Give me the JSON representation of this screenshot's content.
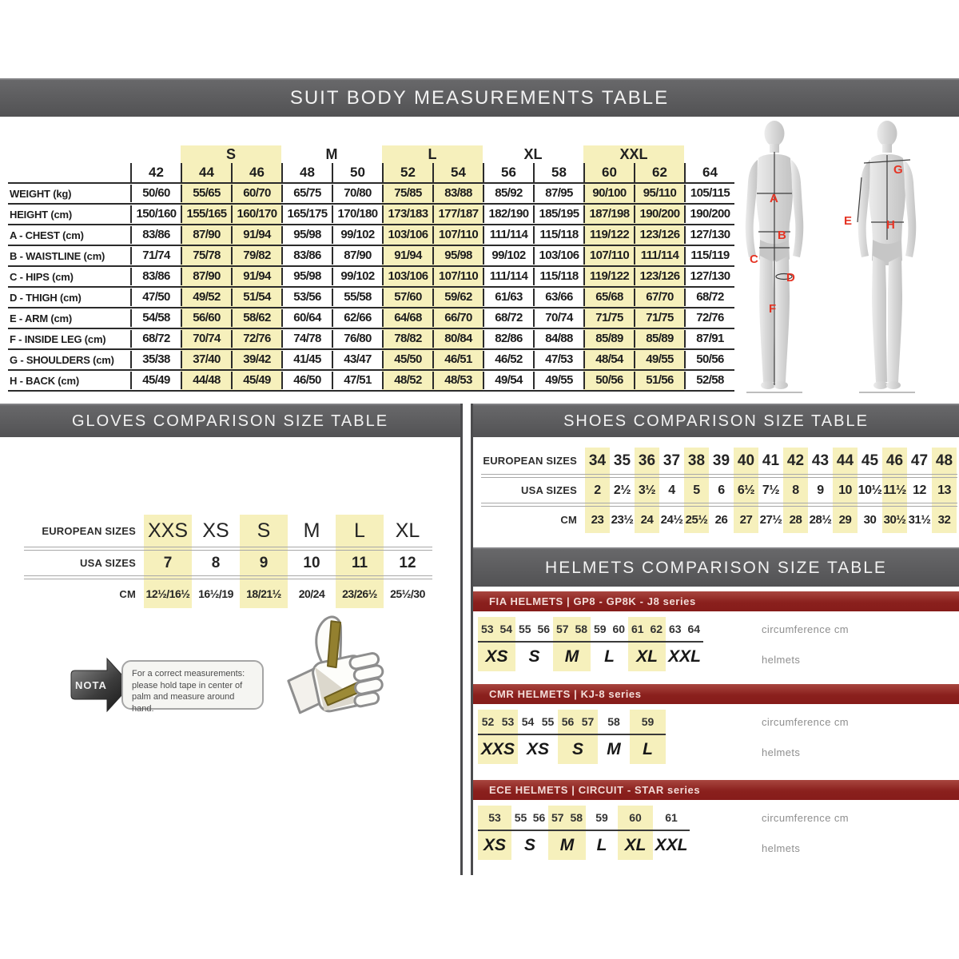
{
  "suit_table": {
    "title": "SUIT BODY MEASUREMENTS TABLE",
    "groups": [
      {
        "label": "",
        "cols": 1,
        "highlight": false
      },
      {
        "label": "S",
        "cols": 2,
        "highlight": true
      },
      {
        "label": "M",
        "cols": 2,
        "highlight": false
      },
      {
        "label": "L",
        "cols": 2,
        "highlight": true
      },
      {
        "label": "XL",
        "cols": 2,
        "highlight": false
      },
      {
        "label": "XXL",
        "cols": 2,
        "highlight": true
      },
      {
        "label": "",
        "cols": 1,
        "highlight": false
      }
    ],
    "sizes": [
      "42",
      "44",
      "46",
      "48",
      "50",
      "52",
      "54",
      "56",
      "58",
      "60",
      "62",
      "64"
    ],
    "highlight_cols": [
      1,
      2,
      5,
      6,
      9,
      10
    ],
    "rows": [
      {
        "label": "WEIGHT (kg)",
        "values": [
          "50/60",
          "55/65",
          "60/70",
          "65/75",
          "70/80",
          "75/85",
          "83/88",
          "85/92",
          "87/95",
          "90/100",
          "95/110",
          "105/115"
        ]
      },
      {
        "label": "HEIGHT (cm)",
        "values": [
          "150/160",
          "155/165",
          "160/170",
          "165/175",
          "170/180",
          "173/183",
          "177/187",
          "182/190",
          "185/195",
          "187/198",
          "190/200",
          "190/200"
        ]
      },
      {
        "label": "A - CHEST (cm)",
        "values": [
          "83/86",
          "87/90",
          "91/94",
          "95/98",
          "99/102",
          "103/106",
          "107/110",
          "111/114",
          "115/118",
          "119/122",
          "123/126",
          "127/130"
        ]
      },
      {
        "label": "B - WAISTLINE (cm)",
        "values": [
          "71/74",
          "75/78",
          "79/82",
          "83/86",
          "87/90",
          "91/94",
          "95/98",
          "99/102",
          "103/106",
          "107/110",
          "111/114",
          "115/119"
        ]
      },
      {
        "label": "C - HIPS (cm)",
        "values": [
          "83/86",
          "87/90",
          "91/94",
          "95/98",
          "99/102",
          "103/106",
          "107/110",
          "111/114",
          "115/118",
          "119/122",
          "123/126",
          "127/130"
        ]
      },
      {
        "label": "D - THIGH (cm)",
        "values": [
          "47/50",
          "49/52",
          "51/54",
          "53/56",
          "55/58",
          "57/60",
          "59/62",
          "61/63",
          "63/66",
          "65/68",
          "67/70",
          "68/72"
        ]
      },
      {
        "label": "E - ARM (cm)",
        "values": [
          "54/58",
          "56/60",
          "58/62",
          "60/64",
          "62/66",
          "64/68",
          "66/70",
          "68/72",
          "70/74",
          "71/75",
          "71/75",
          "72/76"
        ]
      },
      {
        "label": "F - INSIDE LEG (cm)",
        "values": [
          "68/72",
          "70/74",
          "72/76",
          "74/78",
          "76/80",
          "78/82",
          "80/84",
          "82/86",
          "84/88",
          "85/89",
          "85/89",
          "87/91"
        ]
      },
      {
        "label": "G - SHOULDERS (cm)",
        "values": [
          "35/38",
          "37/40",
          "39/42",
          "41/45",
          "43/47",
          "45/50",
          "46/51",
          "46/52",
          "47/53",
          "48/54",
          "49/55",
          "50/56"
        ]
      },
      {
        "label": "H - BACK (cm)",
        "values": [
          "45/49",
          "44/48",
          "45/49",
          "46/50",
          "47/51",
          "48/52",
          "48/53",
          "49/54",
          "49/55",
          "50/56",
          "51/56",
          "52/58"
        ]
      }
    ]
  },
  "figures": {
    "front": [
      "A",
      "B",
      "C",
      "D",
      "F"
    ],
    "back": [
      "G",
      "E",
      "H"
    ]
  },
  "gloves_table": {
    "header": "GLOVES COMPARISON SIZE TABLE",
    "row_labels": [
      "EUROPEAN SIZES",
      "USA SIZES",
      "CM"
    ],
    "columns": [
      {
        "eu": "XXS",
        "usa": "7",
        "cm": "12½/16½",
        "highlight": true
      },
      {
        "eu": "XS",
        "usa": "8",
        "cm": "16½/19",
        "highlight": false
      },
      {
        "eu": "S",
        "usa": "9",
        "cm": "18/21½",
        "highlight": true
      },
      {
        "eu": "M",
        "usa": "10",
        "cm": "20/24",
        "highlight": false
      },
      {
        "eu": "L",
        "usa": "11",
        "cm": "23/26½",
        "highlight": true
      },
      {
        "eu": "XL",
        "usa": "12",
        "cm": "25½/30",
        "highlight": false
      }
    ]
  },
  "shoes_table": {
    "header": "SHOES COMPARISON SIZE TABLE",
    "row_labels": [
      "EUROPEAN SIZES",
      "USA SIZES",
      "CM"
    ],
    "columns": [
      {
        "eu": "34",
        "usa": "2",
        "cm": "23",
        "highlight": true
      },
      {
        "eu": "35",
        "usa": "2½",
        "cm": "23½",
        "highlight": false
      },
      {
        "eu": "36",
        "usa": "3½",
        "cm": "24",
        "highlight": true
      },
      {
        "eu": "37",
        "usa": "4",
        "cm": "24½",
        "highlight": false
      },
      {
        "eu": "38",
        "usa": "5",
        "cm": "25½",
        "highlight": true
      },
      {
        "eu": "39",
        "usa": "6",
        "cm": "26",
        "highlight": false
      },
      {
        "eu": "40",
        "usa": "6½",
        "cm": "27",
        "highlight": true
      },
      {
        "eu": "41",
        "usa": "7½",
        "cm": "27½",
        "highlight": false
      },
      {
        "eu": "42",
        "usa": "8",
        "cm": "28",
        "highlight": true
      },
      {
        "eu": "43",
        "usa": "9",
        "cm": "28½",
        "highlight": false
      },
      {
        "eu": "44",
        "usa": "10",
        "cm": "29",
        "highlight": true
      },
      {
        "eu": "45",
        "usa": "10½",
        "cm": "30",
        "highlight": false
      },
      {
        "eu": "46",
        "usa": "11½",
        "cm": "30½",
        "highlight": true
      },
      {
        "eu": "47",
        "usa": "12",
        "cm": "31½",
        "highlight": false
      },
      {
        "eu": "48",
        "usa": "13",
        "cm": "32",
        "highlight": true
      }
    ]
  },
  "helmets": {
    "title": "HELMETS COMPARISON SIZE TABLE",
    "circ_label": "circumference cm",
    "helmets_label": "helmets",
    "tables": [
      {
        "name": "FIA HELMETS | GP8 - GP8K - J8 series",
        "columns": [
          {
            "circ": [
              "53",
              "54"
            ],
            "size": "XS",
            "highlight": true
          },
          {
            "circ": [
              "55",
              "56"
            ],
            "size": "S",
            "highlight": false
          },
          {
            "circ": [
              "57",
              "58"
            ],
            "size": "M",
            "highlight": true
          },
          {
            "circ": [
              "59",
              "60"
            ],
            "size": "L",
            "highlight": false
          },
          {
            "circ": [
              "61",
              "62"
            ],
            "size": "XL",
            "highlight": true
          },
          {
            "circ": [
              "63",
              "64"
            ],
            "size": "XXL",
            "highlight": false
          }
        ]
      },
      {
        "name": "CMR HELMETS | KJ-8 series",
        "columns": [
          {
            "circ": [
              "52",
              "53"
            ],
            "size": "XXS",
            "highlight": true
          },
          {
            "circ": [
              "54",
              "55"
            ],
            "size": "XS",
            "highlight": false
          },
          {
            "circ": [
              "56",
              "57"
            ],
            "size": "S",
            "highlight": true
          },
          {
            "circ": [
              "58"
            ],
            "size": "M",
            "highlight": false
          },
          {
            "circ": [
              "59"
            ],
            "size": "L",
            "highlight": true
          }
        ]
      },
      {
        "name": "ECE HELMETS | CIRCUIT - STAR series",
        "columns": [
          {
            "circ": [
              "53"
            ],
            "size": "XS",
            "highlight": true
          },
          {
            "circ": [
              "55",
              "56"
            ],
            "size": "S",
            "highlight": false
          },
          {
            "circ": [
              "57",
              "58"
            ],
            "size": "M",
            "highlight": true
          },
          {
            "circ": [
              "59"
            ],
            "size": "L",
            "highlight": false
          },
          {
            "circ": [
              "60"
            ],
            "size": "XL",
            "highlight": true
          },
          {
            "circ": [
              "61"
            ],
            "size": "XXL",
            "highlight": false
          }
        ]
      }
    ]
  },
  "nota": {
    "label": "NOTA",
    "text": "For a correct measurements: please hold tape in center of palm and measure around hand."
  }
}
